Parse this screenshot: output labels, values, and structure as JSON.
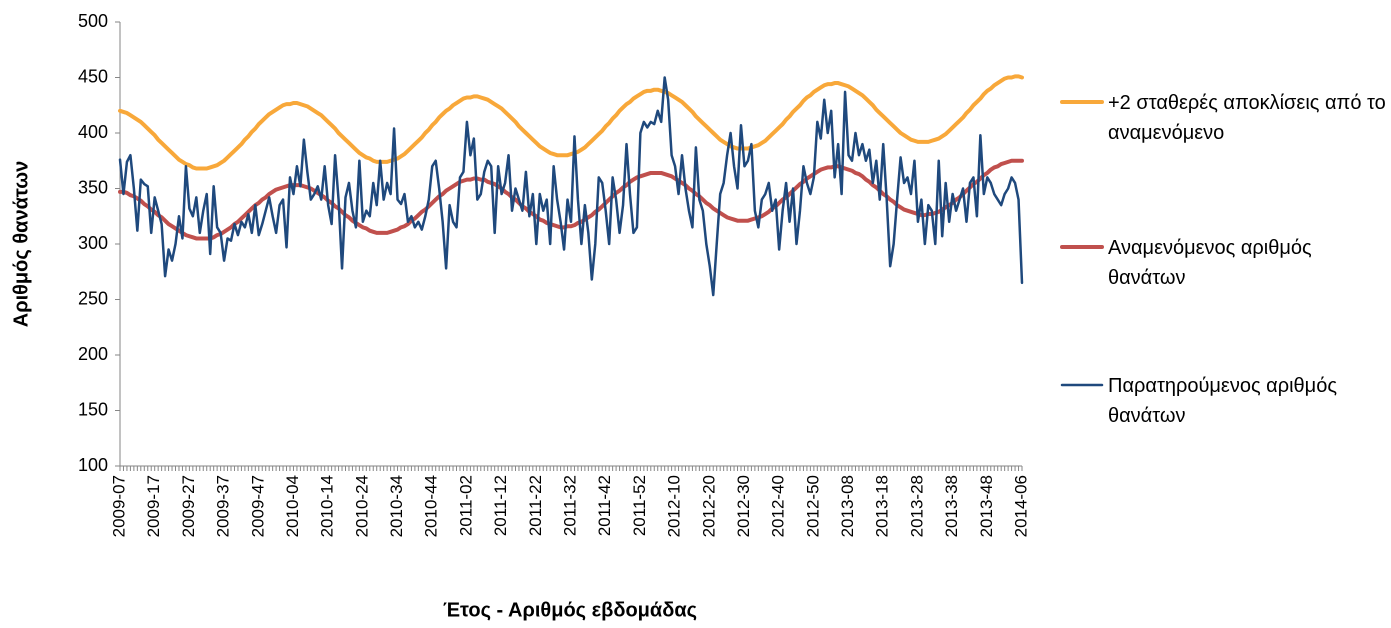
{
  "chart_data": {
    "type": "line",
    "y_label": "Αριθμός θανάτων",
    "x_label": "Έτος - Αριθμός εβδομάδας",
    "categories": [
      "2009-07",
      null,
      null,
      null,
      null,
      null,
      null,
      null,
      null,
      null,
      "2009-17",
      null,
      null,
      null,
      null,
      null,
      null,
      null,
      null,
      null,
      "2009-27",
      null,
      null,
      null,
      null,
      null,
      null,
      null,
      null,
      null,
      "2009-37",
      null,
      null,
      null,
      null,
      null,
      null,
      null,
      null,
      null,
      "2009-47",
      null,
      null,
      null,
      null,
      null,
      null,
      null,
      null,
      null,
      "2010-04",
      null,
      null,
      null,
      null,
      null,
      null,
      null,
      null,
      null,
      "2010-14",
      null,
      null,
      null,
      null,
      null,
      null,
      null,
      null,
      null,
      "2010-24",
      null,
      null,
      null,
      null,
      null,
      null,
      null,
      null,
      null,
      "2010-34",
      null,
      null,
      null,
      null,
      null,
      null,
      null,
      null,
      null,
      "2010-44",
      null,
      null,
      null,
      null,
      null,
      null,
      null,
      null,
      null,
      "2011-02",
      null,
      null,
      null,
      null,
      null,
      null,
      null,
      null,
      null,
      "2011-12",
      null,
      null,
      null,
      null,
      null,
      null,
      null,
      null,
      null,
      "2011-22",
      null,
      null,
      null,
      null,
      null,
      null,
      null,
      null,
      null,
      "2011-32",
      null,
      null,
      null,
      null,
      null,
      null,
      null,
      null,
      null,
      "2011-42",
      null,
      null,
      null,
      null,
      null,
      null,
      null,
      null,
      null,
      "2011-52",
      null,
      null,
      null,
      null,
      null,
      null,
      null,
      null,
      null,
      "2012-10",
      null,
      null,
      null,
      null,
      null,
      null,
      null,
      null,
      null,
      "2012-20",
      null,
      null,
      null,
      null,
      null,
      null,
      null,
      null,
      null,
      "2012-30",
      null,
      null,
      null,
      null,
      null,
      null,
      null,
      null,
      null,
      "2012-40",
      null,
      null,
      null,
      null,
      null,
      null,
      null,
      null,
      null,
      "2012-50",
      null,
      null,
      null,
      null,
      null,
      null,
      null,
      null,
      null,
      "2013-08",
      null,
      null,
      null,
      null,
      null,
      null,
      null,
      null,
      null,
      "2013-18",
      null,
      null,
      null,
      null,
      null,
      null,
      null,
      null,
      null,
      "2013-28",
      null,
      null,
      null,
      null,
      null,
      null,
      null,
      null,
      null,
      "2013-38",
      null,
      null,
      null,
      null,
      null,
      null,
      null,
      null,
      null,
      "2013-48",
      null,
      null,
      null,
      null,
      null,
      null,
      null,
      null,
      null,
      "2014-06"
    ],
    "series": [
      {
        "name": "+2 σταθερές αποκλίσεις από το αναμενόμενο",
        "color": "#f8a83a",
        "values": [
          420,
          419,
          418,
          416,
          414,
          412,
          410,
          407,
          404,
          401,
          398,
          394,
          391,
          388,
          385,
          382,
          379,
          376,
          374,
          372,
          371,
          369,
          368,
          368,
          368,
          368,
          369,
          370,
          371,
          373,
          375,
          378,
          381,
          384,
          387,
          390,
          394,
          397,
          401,
          404,
          408,
          411,
          414,
          417,
          419,
          421,
          423,
          425,
          426,
          426,
          427,
          427,
          426,
          425,
          424,
          422,
          420,
          418,
          416,
          413,
          410,
          407,
          404,
          400,
          397,
          394,
          391,
          388,
          385,
          382,
          380,
          378,
          377,
          375,
          374,
          374,
          374,
          374,
          375,
          376,
          377,
          379,
          381,
          384,
          387,
          390,
          393,
          396,
          400,
          403,
          407,
          410,
          414,
          417,
          420,
          422,
          425,
          427,
          429,
          431,
          432,
          432,
          433,
          433,
          432,
          431,
          430,
          428,
          426,
          424,
          422,
          419,
          416,
          413,
          410,
          406,
          403,
          400,
          397,
          394,
          391,
          388,
          386,
          384,
          382,
          381,
          380,
          380,
          380,
          380,
          381,
          382,
          383,
          385,
          387,
          390,
          393,
          396,
          399,
          402,
          406,
          409,
          413,
          416,
          420,
          423,
          426,
          428,
          431,
          433,
          435,
          437,
          438,
          438,
          439,
          439,
          438,
          437,
          436,
          434,
          432,
          430,
          428,
          425,
          422,
          419,
          415,
          412,
          409,
          406,
          403,
          400,
          397,
          394,
          392,
          390,
          388,
          387,
          386,
          386,
          386,
          386,
          387,
          388,
          389,
          391,
          393,
          396,
          399,
          402,
          405,
          408,
          412,
          415,
          419,
          422,
          425,
          429,
          432,
          434,
          437,
          439,
          441,
          443,
          444,
          444,
          445,
          445,
          444,
          443,
          442,
          440,
          438,
          436,
          434,
          431,
          428,
          425,
          421,
          418,
          415,
          412,
          409,
          406,
          403,
          400,
          398,
          396,
          394,
          393,
          392,
          392,
          392,
          392,
          393,
          394,
          395,
          397,
          399,
          402,
          405,
          408,
          411,
          414,
          418,
          421,
          425,
          428,
          431,
          435,
          438,
          440,
          443,
          445,
          447,
          449,
          450,
          450,
          451,
          451,
          450
        ]
      },
      {
        "name": "Αναμενόμενος αριθμός θανάτων",
        "color": "#c0504d",
        "values": [
          347,
          347,
          346,
          344,
          343,
          341,
          339,
          336,
          334,
          331,
          329,
          326,
          324,
          321,
          318,
          316,
          314,
          312,
          310,
          308,
          307,
          306,
          305,
          305,
          305,
          305,
          305,
          306,
          308,
          309,
          311,
          313,
          315,
          318,
          320,
          323,
          326,
          329,
          332,
          335,
          337,
          340,
          342,
          345,
          347,
          349,
          350,
          351,
          352,
          353,
          353,
          353,
          353,
          352,
          351,
          350,
          348,
          346,
          344,
          342,
          339,
          337,
          334,
          332,
          329,
          326,
          324,
          321,
          319,
          317,
          315,
          314,
          312,
          311,
          310,
          310,
          310,
          310,
          311,
          312,
          313,
          315,
          316,
          318,
          321,
          323,
          326,
          329,
          331,
          334,
          337,
          340,
          343,
          345,
          348,
          350,
          352,
          354,
          356,
          357,
          358,
          358,
          359,
          359,
          358,
          358,
          356,
          355,
          354,
          352,
          350,
          347,
          345,
          342,
          340,
          337,
          334,
          332,
          329,
          327,
          325,
          322,
          321,
          319,
          318,
          317,
          316,
          315,
          315,
          316,
          316,
          317,
          319,
          320,
          322,
          324,
          326,
          329,
          331,
          334,
          337,
          340,
          343,
          346,
          348,
          351,
          353,
          356,
          358,
          360,
          361,
          362,
          363,
          364,
          364,
          364,
          364,
          363,
          362,
          361,
          359,
          357,
          355,
          353,
          350,
          348,
          345,
          343,
          340,
          337,
          335,
          332,
          330,
          328,
          326,
          324,
          323,
          322,
          321,
          321,
          321,
          321,
          322,
          323,
          324,
          325,
          327,
          329,
          332,
          334,
          337,
          340,
          342,
          345,
          348,
          351,
          354,
          356,
          359,
          361,
          363,
          365,
          367,
          368,
          369,
          369,
          370,
          370,
          369,
          368,
          367,
          366,
          364,
          363,
          361,
          358,
          356,
          353,
          351,
          348,
          345,
          343,
          340,
          338,
          335,
          333,
          331,
          330,
          329,
          328,
          327,
          326,
          326,
          327,
          327,
          328,
          329,
          331,
          333,
          335,
          337,
          340,
          342,
          345,
          348,
          351,
          354,
          356,
          359,
          362,
          364,
          367,
          369,
          370,
          372,
          373,
          374,
          375,
          375,
          375,
          375
        ]
      },
      {
        "name": "Παρατηρούμενος αριθμός θανάτων",
        "color": "#1f497d",
        "values": [
          376,
          345,
          374,
          380,
          350,
          312,
          358,
          354,
          352,
          310,
          342,
          330,
          318,
          271,
          295,
          285,
          300,
          325,
          305,
          370,
          332,
          325,
          342,
          310,
          330,
          345,
          291,
          352,
          315,
          310,
          285,
          305,
          303,
          318,
          308,
          320,
          315,
          327,
          310,
          335,
          308,
          318,
          330,
          342,
          325,
          310,
          335,
          340,
          297,
          360,
          345,
          370,
          352,
          394,
          365,
          340,
          345,
          352,
          340,
          370,
          335,
          318,
          380,
          340,
          278,
          342,
          355,
          330,
          315,
          375,
          320,
          330,
          325,
          355,
          335,
          375,
          340,
          355,
          345,
          404,
          340,
          336,
          345,
          320,
          325,
          315,
          320,
          313,
          325,
          340,
          370,
          375,
          350,
          320,
          278,
          335,
          320,
          315,
          360,
          365,
          410,
          380,
          395,
          340,
          345,
          365,
          375,
          370,
          310,
          370,
          345,
          355,
          380,
          330,
          350,
          340,
          330,
          365,
          325,
          345,
          300,
          345,
          330,
          340,
          300,
          370,
          340,
          320,
          295,
          340,
          320,
          397,
          340,
          300,
          335,
          310,
          268,
          300,
          360,
          355,
          330,
          300,
          360,
          340,
          310,
          335,
          390,
          345,
          310,
          315,
          400,
          410,
          405,
          410,
          408,
          420,
          410,
          450,
          430,
          380,
          370,
          345,
          380,
          350,
          330,
          315,
          387,
          340,
          330,
          300,
          280,
          254,
          300,
          345,
          355,
          380,
          400,
          370,
          350,
          407,
          370,
          375,
          390,
          330,
          315,
          340,
          345,
          355,
          330,
          340,
          295,
          330,
          355,
          320,
          350,
          300,
          330,
          370,
          355,
          345,
          360,
          410,
          395,
          430,
          400,
          420,
          360,
          390,
          345,
          437,
          380,
          375,
          400,
          380,
          390,
          375,
          385,
          355,
          375,
          340,
          390,
          340,
          280,
          300,
          340,
          378,
          355,
          360,
          345,
          375,
          320,
          340,
          300,
          335,
          330,
          300,
          375,
          307,
          355,
          320,
          345,
          330,
          340,
          350,
          320,
          355,
          360,
          325,
          398,
          345,
          360,
          355,
          345,
          340,
          335,
          345,
          350,
          360,
          355,
          340,
          265
        ]
      }
    ],
    "ylim": [
      100,
      500
    ],
    "yticks": [
      100,
      150,
      200,
      250,
      300,
      350,
      400,
      450,
      500
    ],
    "grid": false,
    "legend": "right"
  }
}
